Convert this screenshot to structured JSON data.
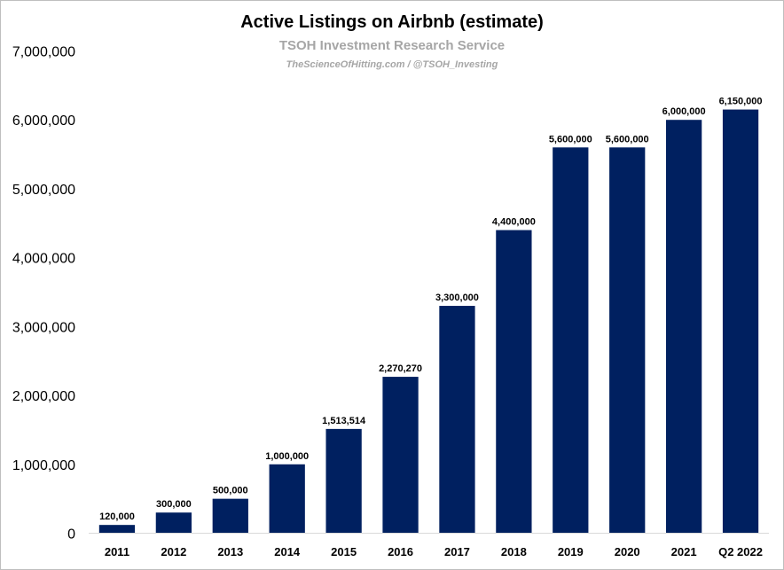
{
  "chart_data": {
    "type": "bar",
    "title": "Active Listings on Airbnb (estimate)",
    "subtitle": "TSOH Investment Research Service",
    "source": "TheScienceOfHitting.com / @TSOH_Investing",
    "xlabel": "",
    "ylabel": "",
    "categories": [
      "2011",
      "2012",
      "2013",
      "2014",
      "2015",
      "2016",
      "2017",
      "2018",
      "2019",
      "2020",
      "2021",
      "Q2 2022"
    ],
    "values": [
      120000,
      300000,
      500000,
      1000000,
      1513514,
      2270270,
      3300000,
      4400000,
      5600000,
      5600000,
      6000000,
      6150000
    ],
    "data_labels": [
      "120,000",
      "300,000",
      "500,000",
      "1,000,000",
      "1,513,514",
      "2,270,270",
      "3,300,000",
      "4,400,000",
      "5,600,000",
      "5,600,000",
      "6,000,000",
      "6,150,000"
    ],
    "ylim": [
      0,
      7000000
    ],
    "y_ticks": [
      "0",
      "1,000,000",
      "2,000,000",
      "3,000,000",
      "4,000,000",
      "5,000,000",
      "6,000,000",
      "7,000,000"
    ],
    "grid": false,
    "legend": "none",
    "bar_color": "#002060",
    "axis_color": "#d9d9d9"
  }
}
